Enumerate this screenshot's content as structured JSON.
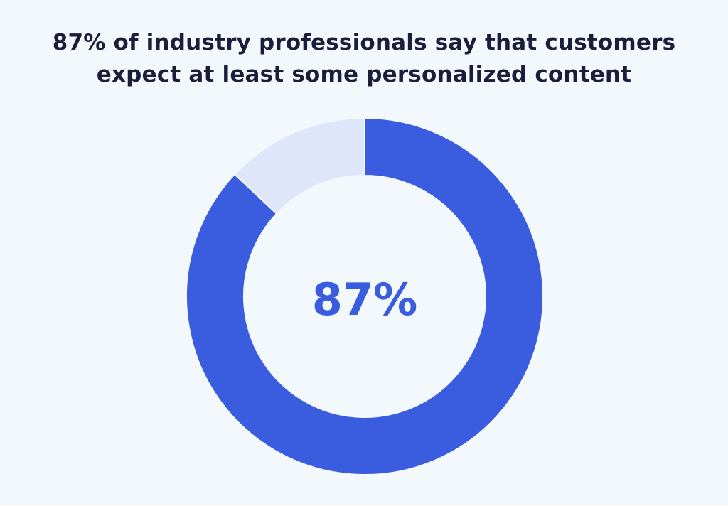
{
  "chart_data": {
    "type": "pie",
    "variant": "donut",
    "title_lines": [
      "87% of industry professionals say that customers",
      "expect at least some personalized content"
    ],
    "center_label": "87%",
    "slices": [
      {
        "value": 87,
        "color": "#3a5ddf"
      },
      {
        "value": 13,
        "color": "#dfe6f9"
      }
    ],
    "legend": "none"
  },
  "colors": {
    "background": "#f3f8fd",
    "title": "#1b1d3a",
    "accent": "#3a5ddf"
  }
}
